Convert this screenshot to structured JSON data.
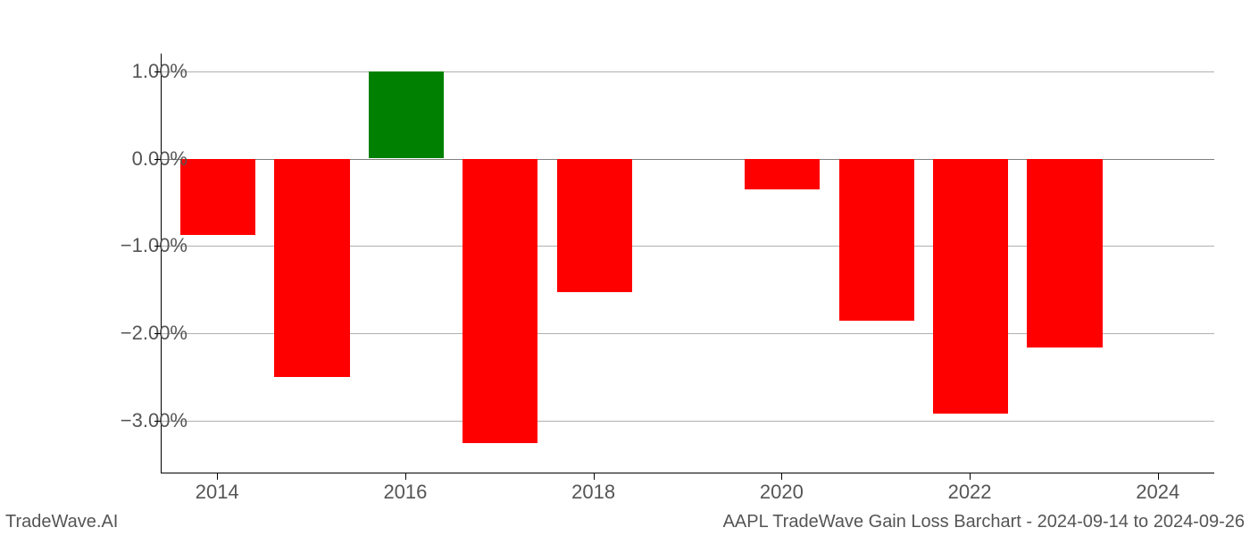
{
  "chart": {
    "type": "bar",
    "years": [
      2014,
      2015,
      2016,
      2017,
      2018,
      2019,
      2020,
      2021,
      2022,
      2023,
      2024
    ],
    "values": [
      -0.87,
      -2.5,
      1.0,
      -3.25,
      -1.53,
      null,
      -0.35,
      -1.85,
      -2.92,
      -2.16,
      null
    ],
    "positive_color": "#008000",
    "negative_color": "#ff0000",
    "ylim_min": -3.6,
    "ylim_max": 1.2,
    "y_ticks": [
      -3.0,
      -2.0,
      -1.0,
      0.0,
      1.0
    ],
    "y_tick_labels": [
      "−3.00%",
      "−2.00%",
      "−1.00%",
      "0.00%",
      "1.00%"
    ],
    "x_ticks": [
      2014,
      2016,
      2018,
      2020,
      2022,
      2024
    ],
    "x_tick_labels": [
      "2014",
      "2016",
      "2018",
      "2020",
      "2022",
      "2024"
    ],
    "xlim_min": 2013.4,
    "xlim_max": 2024.6,
    "grid_color": "#b0b0b0",
    "background_color": "#ffffff",
    "bar_width": 0.8,
    "tick_fontsize": 22,
    "footer_fontsize": 20
  },
  "footer": {
    "left": "TradeWave.AI",
    "right": "AAPL TradeWave Gain Loss Barchart - 2024-09-14 to 2024-09-26"
  }
}
